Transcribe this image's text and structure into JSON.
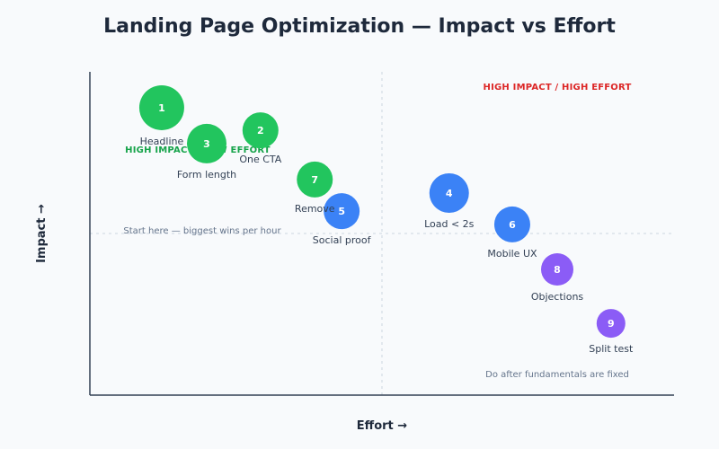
{
  "chart_data": {
    "type": "scatter",
    "title": "Landing Page Optimization — Impact vs Effort",
    "xlabel": "Effort →",
    "ylabel": "Impact →",
    "xlim": [
      0,
      10
    ],
    "ylim": [
      0,
      10
    ],
    "grid": false,
    "quadrant_dividers": {
      "x": 5,
      "y": 5
    },
    "quadrant_labels": {
      "top_left": "HIGH IMPACT / LOW EFFORT",
      "top_right": "HIGH IMPACT / HIGH EFFORT"
    },
    "annotations": {
      "top_left_note": "Start here — biggest wins per hour",
      "bottom_right_note": "Do after fundamentals are fixed"
    },
    "colors": {
      "green": "#22c55e",
      "blue": "#3b82f6",
      "purple": "#8b5cf6"
    },
    "points": [
      {
        "id": "1",
        "label": "Headline",
        "effort": 1.23,
        "impact": 8.89,
        "size": 25,
        "color": "green"
      },
      {
        "id": "2",
        "label": "One CTA",
        "effort": 2.92,
        "impact": 8.19,
        "size": 20,
        "color": "green"
      },
      {
        "id": "3",
        "label": "Form length",
        "effort": 2.0,
        "impact": 7.78,
        "size": 22,
        "color": "green"
      },
      {
        "id": "4",
        "label": "Load < 2s",
        "effort": 6.15,
        "impact": 6.25,
        "size": 22,
        "color": "blue"
      },
      {
        "id": "5",
        "label": "Social proof",
        "effort": 4.31,
        "impact": 5.69,
        "size": 20,
        "color": "blue"
      },
      {
        "id": "6",
        "label": "Mobile UX",
        "effort": 7.23,
        "impact": 5.28,
        "size": 20,
        "color": "blue"
      },
      {
        "id": "7",
        "label": "Remove",
        "effort": 3.85,
        "impact": 6.67,
        "size": 20,
        "color": "green"
      },
      {
        "id": "8",
        "label": "Objections",
        "effort": 8.0,
        "impact": 3.89,
        "size": 18,
        "color": "purple"
      },
      {
        "id": "9",
        "label": "Split test",
        "effort": 8.92,
        "impact": 2.22,
        "size": 16,
        "color": "purple"
      }
    ]
  }
}
